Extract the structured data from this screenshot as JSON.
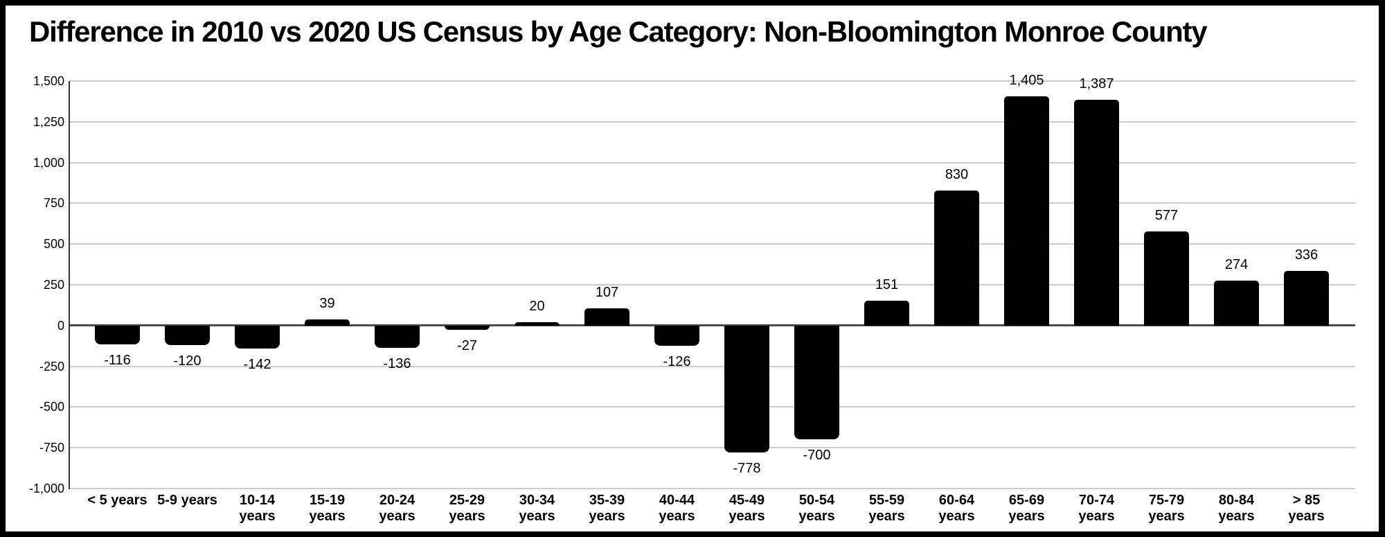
{
  "chart_data": {
    "type": "bar",
    "title": "Difference in 2010 vs 2020 US Census by Age Category: Non-Bloomington Monroe County",
    "categories": [
      "< 5 years",
      "5-9 years",
      "10-14 years",
      "15-19 years",
      "20-24 years",
      "25-29 years",
      "30-34 years",
      "35-39 years",
      "40-44 years",
      "45-49 years",
      "50-54 years",
      "55-59 years",
      "60-64 years",
      "65-69 years",
      "70-74 years",
      "75-79 years",
      "80-84 years",
      "> 85 years"
    ],
    "values": [
      -116,
      -120,
      -142,
      39,
      -136,
      -27,
      20,
      107,
      -126,
      -778,
      -700,
      151,
      830,
      1405,
      1387,
      577,
      274,
      336
    ],
    "value_labels": [
      "-116",
      "-120",
      "-142",
      "39",
      "-136",
      "-27",
      "20",
      "107",
      "-126",
      "-778",
      "-700",
      "151",
      "830",
      "1,405",
      "1,387",
      "577",
      "274",
      "336"
    ],
    "xlabel": "",
    "ylabel": "",
    "ylim": [
      -1000,
      1500
    ],
    "y_ticks": [
      {
        "value": 1500,
        "label": "1,500"
      },
      {
        "value": 1250,
        "label": "1,250"
      },
      {
        "value": 1000,
        "label": "1,000"
      },
      {
        "value": 750,
        "label": "750"
      },
      {
        "value": 500,
        "label": "500"
      },
      {
        "value": 250,
        "label": "250"
      },
      {
        "value": 0,
        "label": "0"
      },
      {
        "value": -250,
        "label": "-250"
      },
      {
        "value": -500,
        "label": "-500"
      },
      {
        "value": -750,
        "label": "-750"
      },
      {
        "value": -1000,
        "label": "-1,000"
      }
    ],
    "grid": "horizontal",
    "legend_position": "none",
    "bar_color": "#000000",
    "gridline_color": "#cccccc",
    "zero_line_color": "#4a4a4a",
    "axis_line_color": "#333333",
    "text_color": "#000000",
    "background_color": "#ffffff",
    "frame_color": "#000000"
  }
}
